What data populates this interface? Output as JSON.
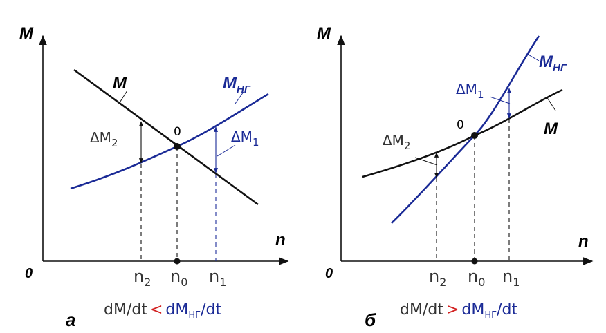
{
  "colors": {
    "curve_black": "#111111",
    "curve_blue": "#1a2a96",
    "relation_red": "#d21e1e"
  },
  "panel_a": {
    "axis_y": "M",
    "axis_x": "n",
    "origin": "0",
    "curve_load": "M",
    "curve_ng_main": "M",
    "curve_ng_sub": "НГ",
    "point": "0",
    "delta2_prefix": "ΔM",
    "delta2_sub": "2",
    "delta1_prefix": "ΔM",
    "delta1_sub": "1",
    "tick_n2_main": "n",
    "tick_n2_sub": "2",
    "tick_n0_main": "n",
    "tick_n0_sub": "0",
    "tick_n1_main": "n",
    "tick_n1_sub": "1",
    "label": "а",
    "relation_left": "dM/dt",
    "relation_op": "<",
    "relation_right_main": "dM",
    "relation_right_sub": "НГ",
    "relation_right_tail": "/dt"
  },
  "panel_b": {
    "axis_y": "M",
    "axis_x": "n",
    "origin": "0",
    "curve_load": "M",
    "curve_ng_main": "M",
    "curve_ng_sub": "НГ",
    "point": "0",
    "delta2_prefix": "ΔM",
    "delta2_sub": "2",
    "delta1_prefix": "ΔM",
    "delta1_sub": "1",
    "tick_n2_main": "n",
    "tick_n2_sub": "2",
    "tick_n0_main": "n",
    "tick_n0_sub": "0",
    "tick_n1_main": "n",
    "tick_n1_sub": "1",
    "label": "б",
    "relation_left": "dM/dt",
    "relation_op": ">",
    "relation_right_main": "dM",
    "relation_right_sub": "НГ",
    "relation_right_tail": "/dt"
  }
}
